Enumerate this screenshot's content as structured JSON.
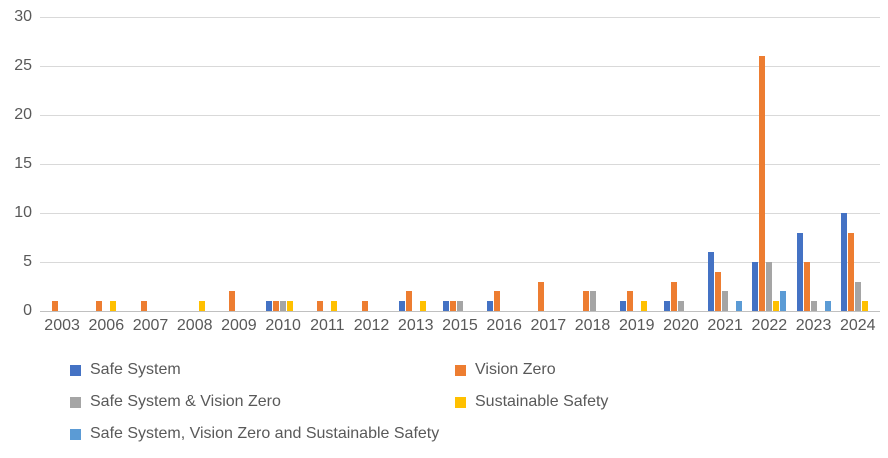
{
  "chart_data": {
    "type": "bar",
    "title": "",
    "xlabel": "",
    "ylabel": "",
    "categories": [
      "2003",
      "2006",
      "2007",
      "2008",
      "2009",
      "2010",
      "2011",
      "2012",
      "2013",
      "2015",
      "2016",
      "2017",
      "2018",
      "2019",
      "2020",
      "2021",
      "2022",
      "2023",
      "2024"
    ],
    "series": [
      {
        "name": "Safe System",
        "color": "#4472C4",
        "values": [
          0,
          0,
          0,
          0,
          0,
          1,
          0,
          0,
          1,
          1,
          1,
          0,
          0,
          1,
          1,
          6,
          5,
          8,
          10
        ]
      },
      {
        "name": "Vision Zero",
        "color": "#ED7D31",
        "values": [
          1,
          1,
          1,
          0,
          2,
          1,
          1,
          1,
          2,
          1,
          2,
          3,
          2,
          2,
          3,
          4,
          26,
          5,
          8
        ]
      },
      {
        "name": "Safe System & Vision Zero",
        "color": "#A5A5A5",
        "values": [
          0,
          0,
          0,
          0,
          0,
          1,
          0,
          0,
          0,
          1,
          0,
          0,
          2,
          0,
          1,
          2,
          5,
          1,
          3
        ]
      },
      {
        "name": "Sustainable Safety",
        "color": "#FFC000",
        "values": [
          0,
          1,
          0,
          1,
          0,
          1,
          1,
          0,
          1,
          0,
          0,
          0,
          0,
          1,
          0,
          0,
          1,
          0,
          1
        ]
      },
      {
        "name": "Safe System, Vision Zero and Sustainable Safety",
        "color": "#5B9BD5",
        "values": [
          0,
          0,
          0,
          0,
          0,
          0,
          0,
          0,
          0,
          0,
          0,
          0,
          0,
          0,
          0,
          1,
          2,
          1,
          0
        ]
      }
    ],
    "ylim": [
      0,
      30
    ],
    "yticks": [
      0,
      5,
      10,
      15,
      20,
      25,
      30
    ],
    "grid": true,
    "legend_position": "bottom",
    "text_color": "#595959",
    "gridline_color": "#D9D9D9"
  }
}
